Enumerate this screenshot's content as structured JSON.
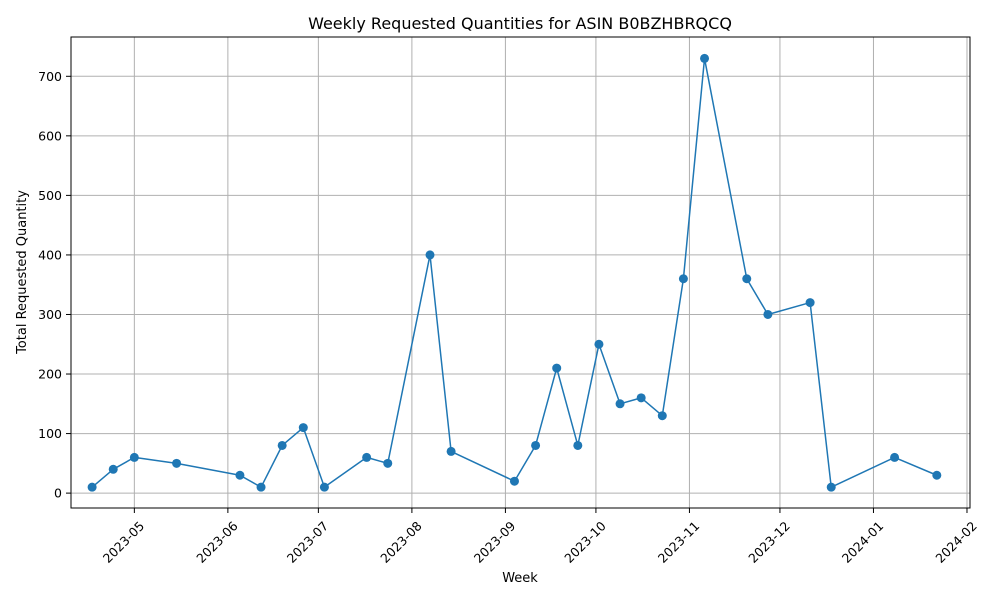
{
  "colors": {
    "line": "#1f77b4",
    "marker": "#1f77b4",
    "grid": "#b0b0b0",
    "axis": "#000000",
    "background": "#ffffff"
  },
  "chart_data": {
    "type": "line",
    "title": "Weekly Requested Quantities for ASIN B0BZHBRQCQ",
    "xlabel": "Week",
    "ylabel": "Total Requested Quantity",
    "grid": true,
    "x_type": "date",
    "xlim": [
      "2023-04-10",
      "2024-02-02"
    ],
    "ylim": [
      -25,
      766
    ],
    "x_ticks": [
      "2023-05-01",
      "2023-06-01",
      "2023-07-01",
      "2023-08-01",
      "2023-09-01",
      "2023-10-01",
      "2023-11-01",
      "2023-12-01",
      "2024-01-01",
      "2024-02-01"
    ],
    "x_tick_labels": [
      "2023-05",
      "2023-06",
      "2023-07",
      "2023-08",
      "2023-09",
      "2023-10",
      "2023-11",
      "2023-12",
      "2024-01",
      "2024-02"
    ],
    "y_ticks": [
      0,
      100,
      200,
      300,
      400,
      500,
      600,
      700
    ],
    "y_tick_labels": [
      "0",
      "100",
      "200",
      "300",
      "400",
      "500",
      "600",
      "700"
    ],
    "series": [
      {
        "x": [
          "2023-04-17",
          "2023-04-24",
          "2023-05-01",
          "2023-05-15",
          "2023-06-05",
          "2023-06-12",
          "2023-06-19",
          "2023-06-26",
          "2023-07-03",
          "2023-07-17",
          "2023-07-24",
          "2023-08-07",
          "2023-08-14",
          "2023-09-04",
          "2023-09-11",
          "2023-09-18",
          "2023-09-25",
          "2023-10-02",
          "2023-10-09",
          "2023-10-16",
          "2023-10-23",
          "2023-10-30",
          "2023-11-06",
          "2023-11-20",
          "2023-11-27",
          "2023-12-11",
          "2023-12-18",
          "2024-01-08",
          "2024-01-22"
        ],
        "values": [
          10,
          40,
          60,
          50,
          30,
          10,
          80,
          110,
          10,
          60,
          50,
          400,
          70,
          20,
          80,
          210,
          80,
          250,
          150,
          160,
          130,
          360,
          730,
          360,
          300,
          320,
          10,
          60,
          30
        ]
      }
    ]
  }
}
